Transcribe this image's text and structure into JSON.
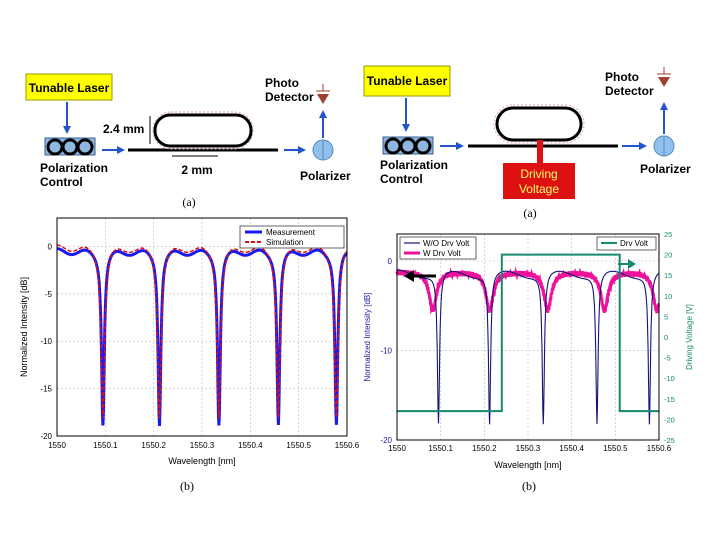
{
  "left_setup": {
    "laser_label": "Tunable Laser",
    "polarization_label_1": "Polarization",
    "polarization_label_2": "Control",
    "height_label": "2.4 mm",
    "width_label": "2 mm",
    "photo_label_1": "Photo",
    "photo_label_2": "Detector",
    "polarizer_label": "Polarizer",
    "caption": "(a)",
    "colors": {
      "laser_box": "#ffff00",
      "arrow": "#2255cc",
      "detector": "#a04030",
      "polarizer": "#8fc0ee"
    }
  },
  "right_setup": {
    "laser_label": "Tunable Laser",
    "polarization_label_1": "Polarization",
    "polarization_label_2": "Control",
    "drive_label_1": "Driving",
    "drive_label_2": "Voltage",
    "photo_label_1": "Photo",
    "photo_label_2": "Detector",
    "polarizer_label": "Polarizer",
    "caption": "(a)",
    "colors": {
      "drive_box": "#dd1111",
      "drive_text": "#ffff66"
    }
  },
  "chart_data": [
    {
      "type": "line",
      "caption": "(b)",
      "xlabel": "Wavelength [nm]",
      "ylabel": "Normalized Intensity [dB]",
      "xlim": [
        1550,
        1550.6
      ],
      "ylim": [
        -20,
        3
      ],
      "x_ticks": [
        "1550",
        "1550.1",
        "1550.2",
        "1550.3",
        "1550.4",
        "1550.5",
        "1550.6"
      ],
      "y_ticks": [
        "0",
        "-5",
        "-10",
        "-15",
        "-20"
      ],
      "grid": true,
      "legend_position": "top-right",
      "dip_wavelengths": [
        1550.095,
        1550.212,
        1550.335,
        1550.458,
        1550.578
      ],
      "series": [
        {
          "name": "Measurement",
          "color": "#1a1aee",
          "style": "solid",
          "baseline_db": -0.2,
          "dip_db": -18.3
        },
        {
          "name": "Simulation",
          "color": "#dd1111",
          "style": "dashed",
          "baseline_db": 0.2,
          "dip_db": -17.5
        }
      ]
    },
    {
      "type": "line",
      "caption": "(b)",
      "xlabel": "Wavelength [nm]",
      "ylabel": "Normalized Intensity [dB]",
      "y2label": "Driving Voltage [V]",
      "xlim": [
        1550,
        1550.6
      ],
      "ylim": [
        -20,
        3
      ],
      "y2lim": [
        -25,
        25
      ],
      "x_ticks": [
        "1550",
        "1550.1",
        "1550.2",
        "1550.3",
        "1550.4",
        "1550.5",
        "1550.6"
      ],
      "y_ticks": [
        "0",
        "-10",
        "-20"
      ],
      "y2_ticks": [
        "25",
        "20",
        "15",
        "10",
        "5",
        "0",
        "-5",
        "-10",
        "-15",
        "-20",
        "-25"
      ],
      "grid": true,
      "legend_left": [
        "W/O Drv Volt",
        "W Drv Volt"
      ],
      "legend_right": [
        "Drv Volt"
      ],
      "colors": {
        "left_axis": "#1a1a99",
        "right_axis": "#158a6e",
        "wo": "#14147a",
        "w": "#ee1199"
      },
      "wo_dips": [
        1550.095,
        1550.212,
        1550.335,
        1550.458,
        1550.578
      ],
      "wo_dip_db": -17.8,
      "wo_baseline_db": -1.0,
      "w_dips": [
        1550.082,
        1550.212,
        1550.345,
        1550.475,
        1550.595
      ],
      "w_dip_db": -5.5,
      "w_baseline_db": -1.2,
      "voltage_steps": [
        {
          "x": 1550.0,
          "v": -18
        },
        {
          "x": 1550.24,
          "v": 20
        },
        {
          "x": 1550.51,
          "v": -18
        },
        {
          "x": 1550.6,
          "v": -18
        }
      ]
    }
  ]
}
